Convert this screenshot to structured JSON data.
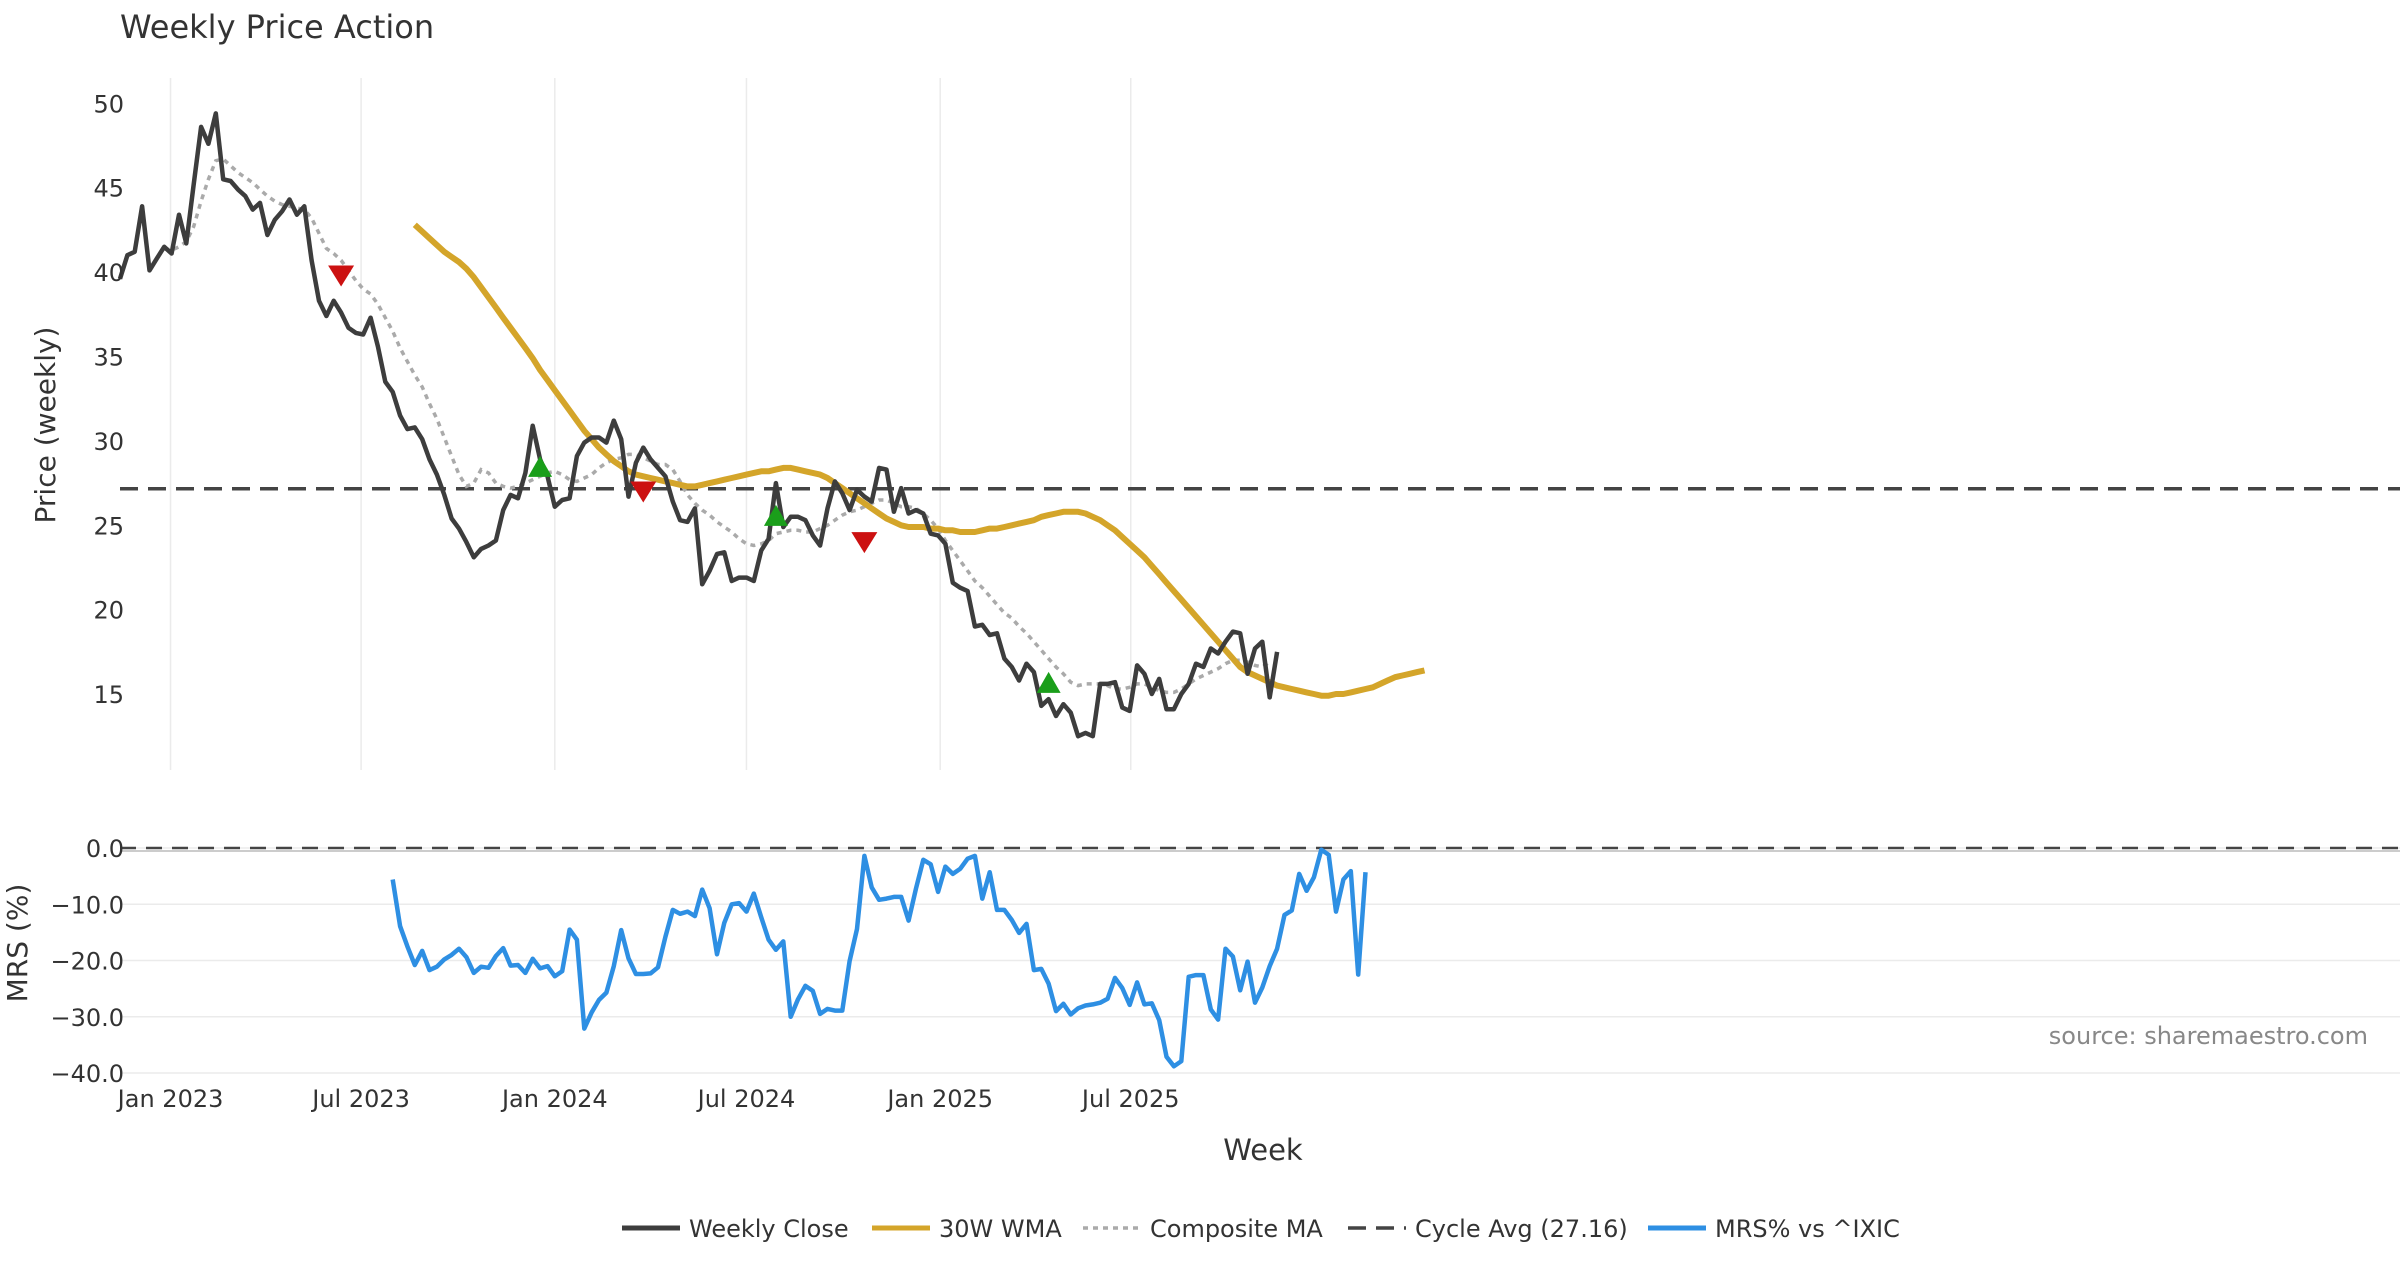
{
  "title": "Weekly Price Action",
  "source_text": "source: sharemaestro.com",
  "colors": {
    "close": "#3d3d3d",
    "wma": "#d4a52a",
    "composite": "#aaaaaa",
    "cycle": "#444444",
    "mrs": "#2e8fe3",
    "buy": "#1a9e1a",
    "sell": "#cc1111",
    "grid": "#ebebeb"
  },
  "chart_data": [
    {
      "type": "line",
      "title": "Weekly Price Action",
      "ylabel": "Price (weekly)",
      "xlabel": "Week",
      "ylim": [
        10.5,
        51.5
      ],
      "yticks": [
        15,
        20,
        25,
        30,
        35,
        40,
        45,
        50
      ],
      "x_start": "2022-11-14",
      "x_step_days": 7,
      "xticks": [
        {
          "date": "2023-01-01",
          "label": "Jan 2023"
        },
        {
          "date": "2023-07-01",
          "label": "Jul 2023"
        },
        {
          "date": "2024-01-01",
          "label": "Jan 2024"
        },
        {
          "date": "2024-07-01",
          "label": "Jul 2024"
        },
        {
          "date": "2025-01-01",
          "label": "Jan 2025"
        },
        {
          "date": "2025-07-01",
          "label": "Jul 2025"
        }
      ],
      "cycle_avg": 27.16,
      "series": [
        {
          "name": "Weekly Close",
          "key": "close",
          "values": [
            39.6,
            41.0,
            41.2,
            43.9,
            40.1,
            40.8,
            41.5,
            41.1,
            43.4,
            41.7,
            45.2,
            48.6,
            47.6,
            49.4,
            45.5,
            45.4,
            44.9,
            44.5,
            43.7,
            44.1,
            42.2,
            43.1,
            43.6,
            44.3,
            43.4,
            43.9,
            40.7,
            38.3,
            37.4,
            38.3,
            37.6,
            36.7,
            36.4,
            36.3,
            37.3,
            35.6,
            33.5,
            32.9,
            31.5,
            30.7,
            30.8,
            30.1,
            28.9,
            28.0,
            26.8,
            25.4,
            24.8,
            24.0,
            23.1,
            23.6,
            23.8,
            24.1,
            25.9,
            26.8,
            26.6,
            28.1,
            30.9,
            28.9,
            27.9,
            26.1,
            26.5,
            26.6,
            29.1,
            29.9,
            30.2,
            30.2,
            29.9,
            31.2,
            30.1,
            26.7,
            28.7,
            29.6,
            28.9,
            28.4,
            27.9,
            26.4,
            25.3,
            25.2,
            26.0,
            21.5,
            22.3,
            23.3,
            23.4,
            21.7,
            21.9,
            21.9,
            21.7,
            23.5,
            24.2,
            27.5,
            24.9,
            25.5,
            25.5,
            25.3,
            24.4,
            23.8,
            26.0,
            27.6,
            26.9,
            25.9,
            27.1,
            26.7,
            26.4,
            28.4,
            28.3,
            25.8,
            27.2,
            25.7,
            25.9,
            25.7,
            24.5,
            24.4,
            23.9,
            21.6,
            21.3,
            21.1,
            19.0,
            19.1,
            18.5,
            18.6,
            17.1,
            16.6,
            15.8,
            16.8,
            16.3,
            14.3,
            14.7,
            13.7,
            14.4,
            13.9,
            12.5,
            12.7,
            12.5,
            15.6,
            15.6,
            15.7,
            14.2,
            14.0,
            16.7,
            16.2,
            15.0,
            15.9,
            14.1,
            14.1,
            15.0,
            15.6,
            16.8,
            16.6,
            17.7,
            17.4,
            18.1,
            18.7,
            18.6,
            16.2,
            17.7,
            18.1,
            14.8,
            17.5
          ]
        },
        {
          "name": "30W WMA",
          "key": "wma",
          "values": [
            null,
            null,
            null,
            null,
            null,
            null,
            null,
            null,
            null,
            null,
            null,
            null,
            null,
            null,
            null,
            null,
            null,
            null,
            null,
            null,
            null,
            null,
            null,
            null,
            null,
            null,
            null,
            null,
            null,
            null,
            null,
            null,
            null,
            null,
            null,
            null,
            null,
            null,
            null,
            null,
            42.8,
            42.4,
            42.0,
            41.6,
            41.2,
            40.9,
            40.6,
            40.2,
            39.7,
            39.1,
            38.5,
            37.9,
            37.3,
            36.7,
            36.1,
            35.5,
            34.9,
            34.2,
            33.6,
            33.0,
            32.4,
            31.8,
            31.2,
            30.6,
            30.1,
            29.6,
            29.2,
            28.8,
            28.5,
            28.2,
            28.0,
            27.9,
            27.8,
            27.7,
            27.6,
            27.5,
            27.4,
            27.3,
            27.3,
            27.4,
            27.5,
            27.6,
            27.7,
            27.8,
            27.9,
            28.0,
            28.1,
            28.2,
            28.2,
            28.3,
            28.4,
            28.4,
            28.3,
            28.2,
            28.1,
            28.0,
            27.8,
            27.5,
            27.2,
            26.9,
            26.6,
            26.3,
            26.0,
            25.7,
            25.4,
            25.2,
            25.0,
            24.9,
            24.9,
            24.9,
            24.8,
            24.8,
            24.7,
            24.7,
            24.6,
            24.6,
            24.6,
            24.7,
            24.8,
            24.8,
            24.9,
            25.0,
            25.1,
            25.2,
            25.3,
            25.5,
            25.6,
            25.7,
            25.8,
            25.8,
            25.8,
            25.7,
            25.5,
            25.3,
            25.0,
            24.7,
            24.3,
            23.9,
            23.5,
            23.1,
            22.6,
            22.1,
            21.6,
            21.1,
            20.6,
            20.1,
            19.6,
            19.1,
            18.6,
            18.1,
            17.6,
            17.1,
            16.6,
            16.3,
            16.1,
            15.9,
            15.7,
            15.5,
            15.4,
            15.3,
            15.2,
            15.1,
            15.0,
            14.9,
            14.9,
            15.0,
            15.0,
            15.1,
            15.2,
            15.3,
            15.4,
            15.6,
            15.8,
            16.0,
            16.1,
            16.2,
            16.3,
            16.4
          ]
        },
        {
          "name": "Composite MA",
          "key": "composite",
          "values": [
            null,
            null,
            null,
            null,
            null,
            null,
            41.4,
            41.3,
            41.5,
            41.8,
            42.7,
            44.2,
            45.5,
            46.6,
            46.7,
            46.3,
            45.9,
            45.6,
            45.3,
            44.9,
            44.5,
            44.2,
            44.0,
            43.9,
            43.8,
            43.7,
            43.2,
            42.3,
            41.4,
            41.1,
            40.7,
            40.1,
            39.5,
            39.0,
            38.7,
            38.1,
            37.3,
            36.5,
            35.5,
            34.7,
            33.9,
            33.2,
            32.2,
            31.3,
            30.2,
            29.1,
            28.0,
            27.3,
            27.5,
            28.3,
            28.1,
            27.5,
            27.3,
            27.2,
            27.3,
            27.5,
            27.7,
            27.9,
            28.1,
            28.2,
            28.0,
            27.7,
            27.6,
            27.8,
            28.0,
            28.4,
            28.7,
            28.9,
            29.0,
            29.2,
            29.2,
            29.0,
            28.8,
            28.6,
            28.6,
            28.3,
            27.6,
            26.8,
            26.3,
            25.9,
            25.6,
            25.2,
            24.9,
            24.6,
            24.2,
            23.9,
            23.8,
            23.9,
            24.1,
            24.5,
            24.6,
            24.7,
            24.7,
            24.6,
            24.6,
            24.8,
            25.0,
            25.3,
            25.6,
            25.8,
            25.9,
            26.1,
            26.3,
            26.5,
            26.5,
            26.3,
            26.1,
            26.1,
            26.0,
            25.7,
            25.3,
            24.8,
            24.1,
            23.5,
            22.9,
            22.3,
            21.7,
            21.3,
            20.8,
            20.3,
            19.8,
            19.5,
            19.0,
            18.6,
            18.1,
            17.6,
            17.1,
            16.6,
            16.2,
            15.7,
            15.5,
            15.6,
            15.6,
            15.6,
            15.5,
            15.3,
            15.3,
            15.4,
            15.6,
            15.6,
            15.4,
            15.2,
            15.1,
            15.1,
            15.3,
            15.6,
            15.9,
            16.1,
            16.3,
            16.5,
            16.8,
            17.0,
            17.0,
            16.9,
            16.7,
            16.6,
            16.9
          ]
        }
      ],
      "signals": [
        {
          "type": "sell",
          "week": 30,
          "price": 39.8
        },
        {
          "type": "buy",
          "week": 57,
          "price": 28.4
        },
        {
          "type": "sell",
          "week": 71,
          "price": 27.0
        },
        {
          "type": "buy",
          "week": 89,
          "price": 25.5
        },
        {
          "type": "sell",
          "week": 101,
          "price": 24.0
        },
        {
          "type": "buy",
          "week": 126,
          "price": 15.6
        }
      ]
    },
    {
      "type": "line",
      "ylabel": "MRS (%)",
      "ylim": [
        -40,
        0
      ],
      "yticks": [
        0,
        -10,
        -20,
        -30,
        -40
      ],
      "ytick_labels": [
        "0.0",
        "−10.0",
        "−20.0",
        "−30.0",
        "−40.0"
      ],
      "zero_line": 0,
      "series": [
        {
          "name": "MRS% vs ^IXIC",
          "key": "mrs",
          "values": [
            null,
            null,
            null,
            null,
            null,
            null,
            null,
            null,
            null,
            null,
            null,
            null,
            null,
            null,
            null,
            null,
            null,
            null,
            null,
            null,
            null,
            null,
            null,
            null,
            null,
            null,
            null,
            null,
            null,
            null,
            null,
            null,
            null,
            null,
            null,
            null,
            null,
            -5.6,
            -13.9,
            -17.5,
            -20.8,
            -18.3,
            -21.7,
            -21.1,
            -19.8,
            -19.0,
            -17.9,
            -19.4,
            -22.2,
            -21.1,
            -21.3,
            -19.2,
            -17.8,
            -20.9,
            -20.8,
            -22.2,
            -19.7,
            -21.4,
            -21.0,
            -22.8,
            -21.9,
            -14.5,
            -16.3,
            -32.1,
            -29.2,
            -27.0,
            -25.7,
            -21.0,
            -14.6,
            -19.6,
            -22.4,
            -22.4,
            -22.3,
            -21.2,
            -15.8,
            -11.0,
            -11.7,
            -11.3,
            -12.1,
            -7.4,
            -10.7,
            -18.9,
            -13.3,
            -10.0,
            -9.8,
            -11.3,
            -8.1,
            -12.3,
            -16.3,
            -18.1,
            -16.6,
            -30.0,
            -26.9,
            -24.5,
            -25.4,
            -29.5,
            -28.6,
            -28.9,
            -28.9,
            -20.1,
            -14.4,
            -1.4,
            -7.0,
            -9.2,
            -9.0,
            -8.7,
            -8.7,
            -12.9,
            -7.2,
            -2.1,
            -2.9,
            -7.8,
            -3.3,
            -4.6,
            -3.7,
            -1.9,
            -1.4,
            -9.0,
            -4.3,
            -11.0,
            -11.0,
            -12.8,
            -15.1,
            -13.5,
            -21.7,
            -21.5,
            -24.1,
            -29.0,
            -27.7,
            -29.6,
            -28.5,
            -28.0,
            -27.8,
            -27.5,
            -26.8,
            -23.1,
            -24.9,
            -27.9,
            -23.9,
            -27.8,
            -27.6,
            -30.6,
            -37.1,
            -38.8,
            -37.9,
            -22.9,
            -22.6,
            -22.6,
            -28.7,
            -30.5,
            -17.9,
            -19.3,
            -25.3,
            -20.2,
            -27.5,
            -24.8,
            -21.0,
            -17.9,
            -11.9,
            -11.1,
            -4.6,
            -7.6,
            -5.2,
            -0.3,
            -1.2,
            -11.3,
            -5.6,
            -4.1,
            -22.5,
            -4.3
          ]
        }
      ]
    }
  ],
  "xlabel": "Week",
  "legend": [
    {
      "label": "Weekly Close",
      "key": "close",
      "style": "solid"
    },
    {
      "label": "30W WMA",
      "key": "wma",
      "style": "solid"
    },
    {
      "label": "Composite MA",
      "key": "composite",
      "style": "dotted"
    },
    {
      "label": "Cycle Avg (27.16)",
      "key": "cycle",
      "style": "dashed"
    },
    {
      "label": "MRS% vs ^IXIC",
      "key": "mrs",
      "style": "solid"
    }
  ]
}
